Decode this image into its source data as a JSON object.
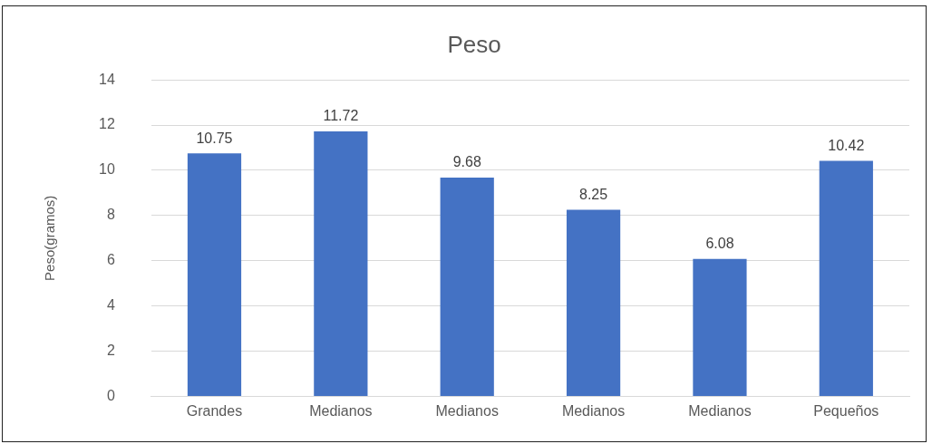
{
  "chart_data": {
    "type": "bar",
    "title": "Peso",
    "ylabel": "Peso(gramos)",
    "categories": [
      "Grandes",
      "Medianos",
      "Medianos",
      "Medianos",
      "Medianos",
      "Pequeños"
    ],
    "values": [
      10.75,
      11.72,
      9.68,
      8.25,
      6.08,
      10.42
    ],
    "color": "#4472c4",
    "ylim": [
      0,
      14
    ],
    "yticks": [
      0,
      2,
      4,
      6,
      8,
      10,
      12,
      14
    ],
    "grid": "y",
    "data_labels": true
  }
}
